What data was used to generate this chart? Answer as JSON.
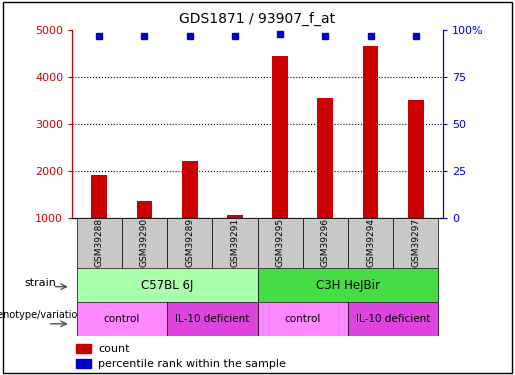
{
  "title": "GDS1871 / 93907_f_at",
  "samples": [
    "GSM39288",
    "GSM39290",
    "GSM39289",
    "GSM39291",
    "GSM39295",
    "GSM39296",
    "GSM39294",
    "GSM39297"
  ],
  "counts": [
    1900,
    1350,
    2200,
    1050,
    4450,
    3550,
    4650,
    3500
  ],
  "percentile_ranks": [
    97,
    97,
    97,
    97,
    98,
    97,
    97,
    97
  ],
  "ylim_left": [
    1000,
    5000
  ],
  "ylim_right": [
    0,
    100
  ],
  "yticks_left": [
    1000,
    2000,
    3000,
    4000,
    5000
  ],
  "yticks_right": [
    0,
    25,
    50,
    75,
    100
  ],
  "ytick_right_labels": [
    "0",
    "25",
    "50",
    "75",
    "100%"
  ],
  "bar_color": "#cc0000",
  "dot_color": "#0000cc",
  "strain_groups": [
    {
      "label": "C57BL 6J",
      "start": 0,
      "end": 4,
      "color": "#aaffaa"
    },
    {
      "label": "C3H HeJBir",
      "start": 4,
      "end": 8,
      "color": "#44dd44"
    }
  ],
  "genotype_groups": [
    {
      "label": "control",
      "start": 0,
      "end": 2,
      "color": "#ff88ff"
    },
    {
      "label": "IL-10 deficient",
      "start": 2,
      "end": 4,
      "color": "#dd44dd"
    },
    {
      "label": "control",
      "start": 4,
      "end": 6,
      "color": "#ff88ff"
    },
    {
      "label": "IL-10 deficient",
      "start": 6,
      "end": 8,
      "color": "#dd44dd"
    }
  ],
  "legend_count_color": "#cc0000",
  "legend_pct_color": "#0000cc",
  "sample_box_color": "#c8c8c8",
  "bar_width": 0.35
}
